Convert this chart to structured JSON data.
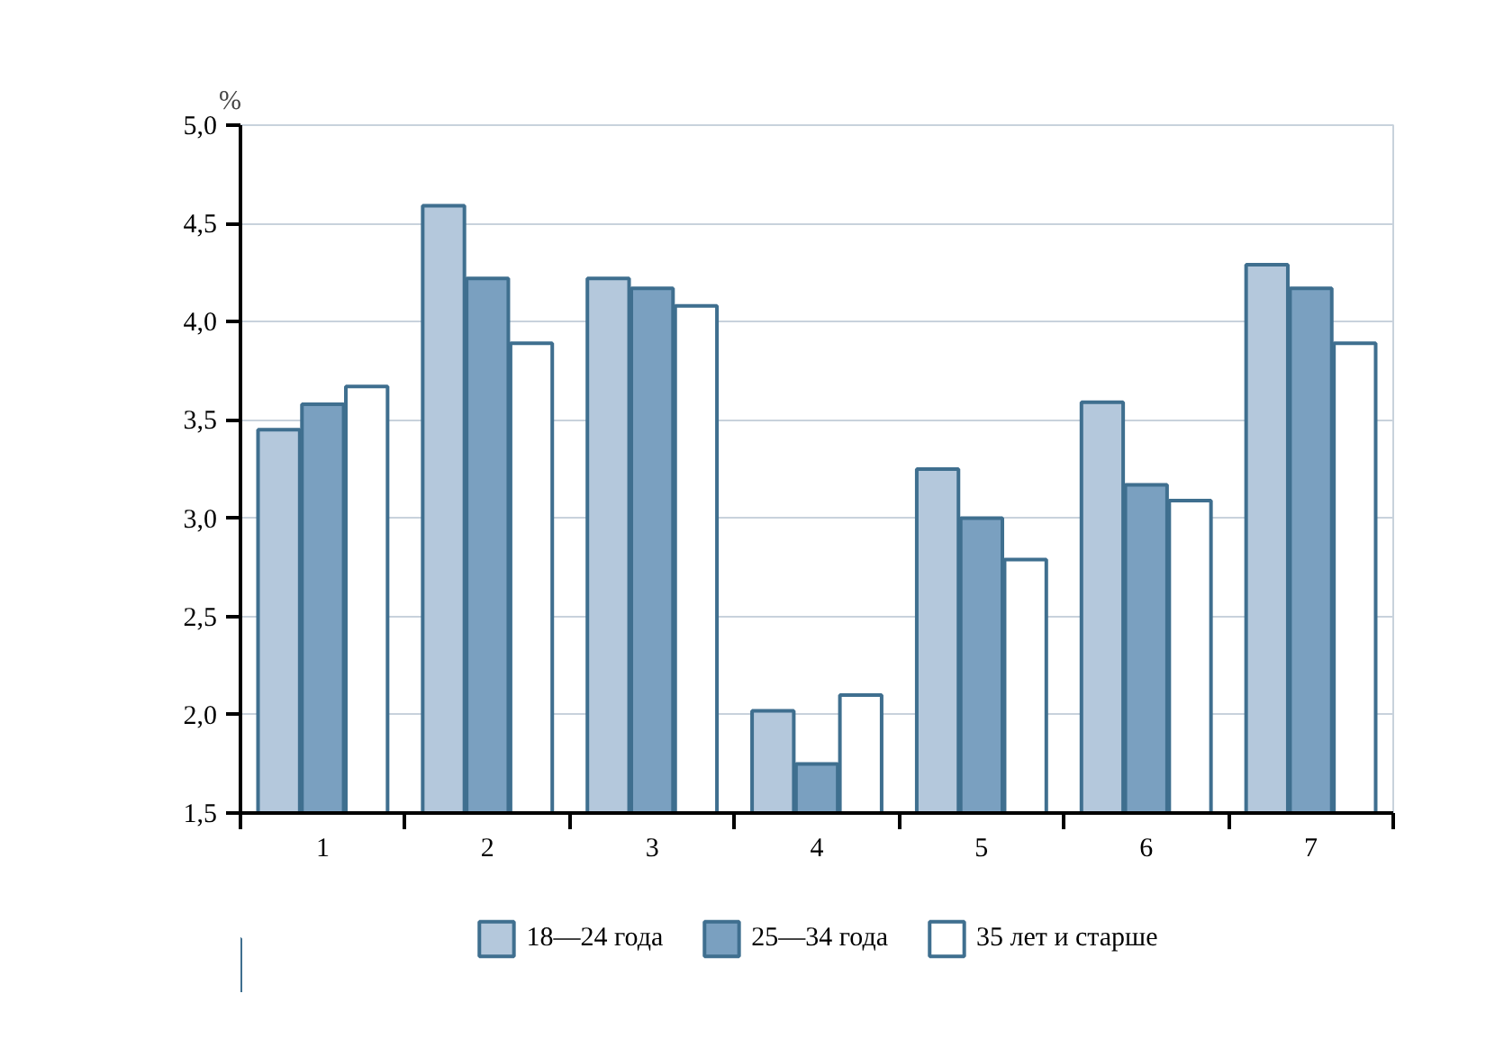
{
  "chart_data": {
    "type": "bar",
    "ylabel": "%",
    "categories": [
      "1",
      "2",
      "3",
      "4",
      "5",
      "6",
      "7"
    ],
    "series": [
      {
        "name": "18—24 года",
        "color": "#b4c8dc",
        "values": [
          3.45,
          4.59,
          4.22,
          2.02,
          3.25,
          3.59,
          4.29
        ]
      },
      {
        "name": "25—34 года",
        "color": "#7aa0c0",
        "values": [
          3.58,
          4.22,
          4.17,
          1.75,
          3.0,
          3.17,
          4.17
        ]
      },
      {
        "name": "35 лет и старше",
        "color": "#ffffff",
        "values": [
          3.67,
          3.89,
          4.08,
          2.1,
          2.79,
          3.09,
          3.89
        ]
      }
    ],
    "ylim": [
      1.5,
      5.0
    ],
    "yticks": [
      {
        "value": 1.5,
        "label": "1,5"
      },
      {
        "value": 2.0,
        "label": "2,0"
      },
      {
        "value": 2.5,
        "label": "2,5"
      },
      {
        "value": 3.0,
        "label": "3,0"
      },
      {
        "value": 3.5,
        "label": "3,5"
      },
      {
        "value": 4.0,
        "label": "4,0"
      },
      {
        "value": 4.5,
        "label": "4,5"
      },
      {
        "value": 5.0,
        "label": "5,0"
      }
    ],
    "grid": "y",
    "legend": "bottom"
  }
}
